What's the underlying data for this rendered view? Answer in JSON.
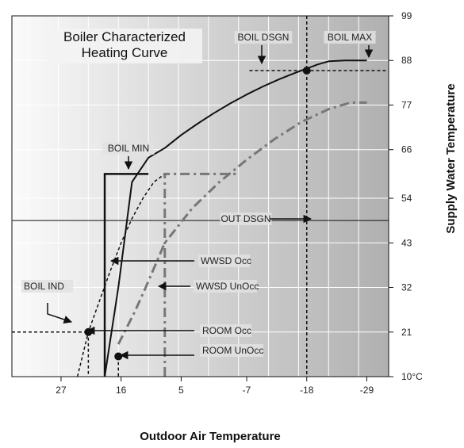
{
  "chart_data": {
    "type": "line",
    "title_lines": [
      "Boiler Characterized",
      "Heating Curve"
    ],
    "xlabel": "Outdoor Air Temperature",
    "ylabel": "Supply Water Temperature",
    "x_direction": "reversed",
    "xlim": [
      36,
      -33
    ],
    "ylim": [
      10,
      99
    ],
    "x_ticks": [
      27,
      16,
      5,
      -7,
      -18,
      -29
    ],
    "x_tick_labels": [
      "27",
      "16",
      "5",
      "-7",
      "-18",
      "-29"
    ],
    "y_ticks": [
      99,
      88,
      77,
      66,
      54,
      43,
      32,
      21,
      10
    ],
    "y_tick_labels": [
      "99",
      "88",
      "77",
      "66",
      "54",
      "43",
      "32",
      "21",
      "10°C"
    ],
    "grid": true,
    "series": [
      {
        "name": "Boiler curve",
        "style": "solid",
        "color": "#111111",
        "x": [
          19,
          16.5,
          14,
          11,
          8,
          5,
          2,
          -1,
          -4,
          -7,
          -10,
          -13,
          -16,
          -18,
          -20,
          -22,
          -25,
          -29
        ],
        "y": [
          10,
          32,
          58,
          64,
          66.4,
          69.6,
          72.4,
          75,
          77.4,
          79.6,
          81.6,
          83.4,
          85,
          86,
          87,
          87.8,
          88,
          88
        ]
      },
      {
        "name": "Occupied curve",
        "style": "dotted",
        "color": "#111111",
        "x": [
          24,
          22,
          20,
          18,
          16,
          14,
          12,
          10,
          8
        ],
        "y": [
          10,
          21,
          28.5,
          36,
          43,
          49,
          54,
          58,
          60
        ]
      },
      {
        "name": "Unoccupied curve",
        "style": "dash-dot",
        "color": "#777777",
        "x": [
          16.5,
          13.5,
          11.5,
          8,
          3,
          -2,
          -7,
          -12,
          -17,
          -22,
          -26,
          -29
        ],
        "y": [
          18,
          26,
          32,
          43,
          51.5,
          58,
          63.5,
          68.5,
          72.8,
          76,
          77.6,
          77.6
        ]
      }
    ],
    "annotations": [
      {
        "text": "BOIL DSGN",
        "point": [
          -18,
          85.5
        ]
      },
      {
        "text": "BOIL MAX",
        "point": [
          -25,
          88
        ]
      },
      {
        "text": "BOIL MIN",
        "point": [
          14,
          60
        ]
      },
      {
        "text": "OUT DSGN",
        "point": [
          -18,
          48.5
        ]
      },
      {
        "text": "WWSD Occ",
        "point": [
          19,
          38
        ]
      },
      {
        "text": "WWSD UnOcc",
        "point": [
          8,
          31
        ]
      },
      {
        "text": "BOIL IND",
        "point": [
          22,
          21
        ]
      },
      {
        "text": "ROOM Occ",
        "point": [
          19,
          21
        ]
      },
      {
        "text": "ROOM UnOcc",
        "point": [
          16.5,
          15
        ]
      }
    ],
    "markers": [
      {
        "x": -18,
        "y": 85.5
      },
      {
        "x": 22,
        "y": 21
      },
      {
        "x": 16.5,
        "y": 15
      }
    ]
  }
}
